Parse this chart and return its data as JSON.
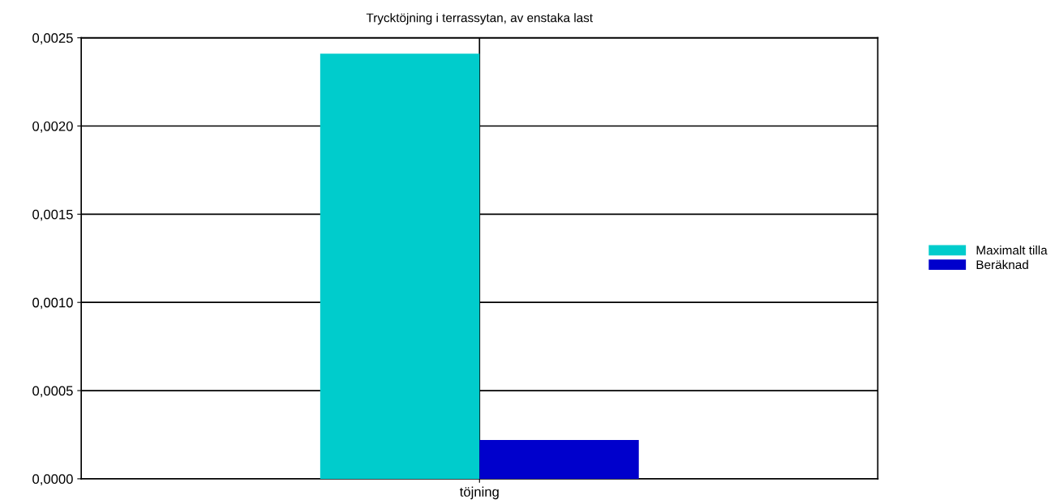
{
  "chart_data": {
    "type": "bar",
    "title": "Trycktöjning i terrassytan, av enstaka last",
    "categories": [
      "töjning"
    ],
    "series": [
      {
        "name": "Maximalt tilla",
        "color": "#00cccc",
        "values": [
          0.00241
        ]
      },
      {
        "name": "Beräknad",
        "color": "#0000cc",
        "values": [
          0.00022
        ]
      }
    ],
    "ylim": [
      0,
      0.0025
    ],
    "yticks": [
      {
        "value": 0,
        "label": "0,0000"
      },
      {
        "value": 0.0005,
        "label": "0,0005"
      },
      {
        "value": 0.001,
        "label": "0,0010"
      },
      {
        "value": 0.0015,
        "label": "0,0015"
      },
      {
        "value": 0.002,
        "label": "0,0020"
      },
      {
        "value": 0.0025,
        "label": "0,0025"
      }
    ],
    "grid": true,
    "legend": "right"
  }
}
